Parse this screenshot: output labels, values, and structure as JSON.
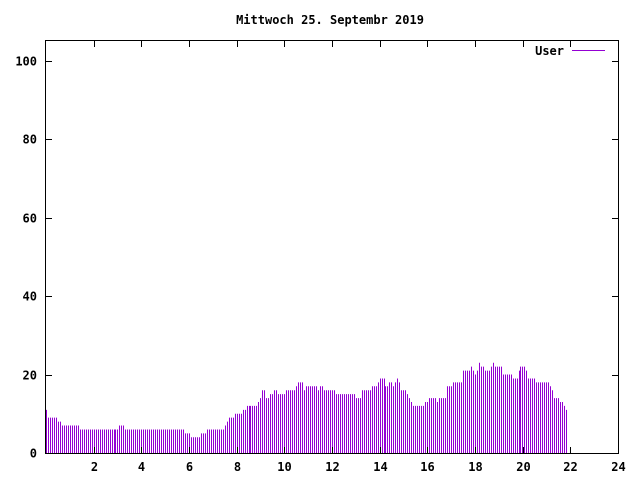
{
  "chart_data": {
    "type": "bar",
    "title": "Mittwoch 25. Septembr 2019",
    "xlabel": "",
    "ylabel": "",
    "xlim": [
      0,
      24
    ],
    "ylim": [
      0,
      105
    ],
    "x_ticks": [
      2,
      4,
      6,
      8,
      10,
      12,
      14,
      16,
      18,
      20,
      22,
      24
    ],
    "y_ticks": [
      0,
      20,
      40,
      60,
      80,
      100
    ],
    "grid": false,
    "legend_position": "top-right",
    "series": [
      {
        "name": "User",
        "color": "#9400d3",
        "x_step_hours": 0.0833,
        "values": [
          11,
          9,
          9,
          9,
          9,
          9,
          8,
          8,
          7,
          7,
          7,
          7,
          7,
          7,
          7,
          7,
          7,
          6,
          6,
          6,
          6,
          6,
          6,
          6,
          6,
          6,
          6,
          6,
          6,
          6,
          6,
          6,
          6,
          6,
          6,
          6,
          6,
          7,
          7,
          7,
          6,
          6,
          6,
          6,
          6,
          6,
          6,
          6,
          6,
          6,
          6,
          6,
          6,
          6,
          6,
          6,
          6,
          6,
          6,
          6,
          6,
          6,
          6,
          6,
          6,
          6,
          6,
          6,
          6,
          6,
          5,
          5,
          5,
          4,
          4,
          4,
          4,
          4,
          5,
          5,
          5,
          6,
          6,
          6,
          6,
          6,
          6,
          6,
          6,
          6,
          7,
          8,
          9,
          9,
          9,
          10,
          10,
          10,
          10,
          11,
          11,
          12,
          12,
          12,
          12,
          12,
          12,
          13,
          14,
          16,
          16,
          14,
          14,
          15,
          15,
          16,
          16,
          15,
          15,
          15,
          15,
          16,
          16,
          16,
          16,
          16,
          17,
          18,
          18,
          18,
          16,
          17,
          17,
          17,
          17,
          17,
          17,
          16,
          17,
          17,
          16,
          16,
          16,
          16,
          16,
          16,
          15,
          15,
          15,
          15,
          15,
          15,
          15,
          15,
          15,
          15,
          14,
          14,
          14,
          16,
          16,
          16,
          16,
          16,
          17,
          17,
          17,
          18,
          19,
          19,
          19,
          17,
          17,
          18,
          18,
          17,
          18,
          19,
          18,
          16,
          16,
          16,
          15,
          14,
          13,
          12,
          12,
          12,
          12,
          12,
          12,
          13,
          13,
          14,
          14,
          14,
          14,
          13,
          14,
          14,
          14,
          14,
          17,
          17,
          17,
          18,
          18,
          18,
          18,
          18,
          21,
          21,
          21,
          21,
          22,
          21,
          20,
          21,
          23,
          22,
          22,
          21,
          21,
          21,
          22,
          23,
          22,
          22,
          22,
          22,
          20,
          20,
          20,
          20,
          20,
          19,
          19,
          19,
          21,
          22,
          22,
          22,
          21,
          19,
          19,
          19,
          19,
          18,
          18,
          18,
          18,
          18,
          18,
          18,
          17,
          16,
          14,
          14,
          14,
          13,
          13,
          12,
          11
        ]
      }
    ]
  }
}
